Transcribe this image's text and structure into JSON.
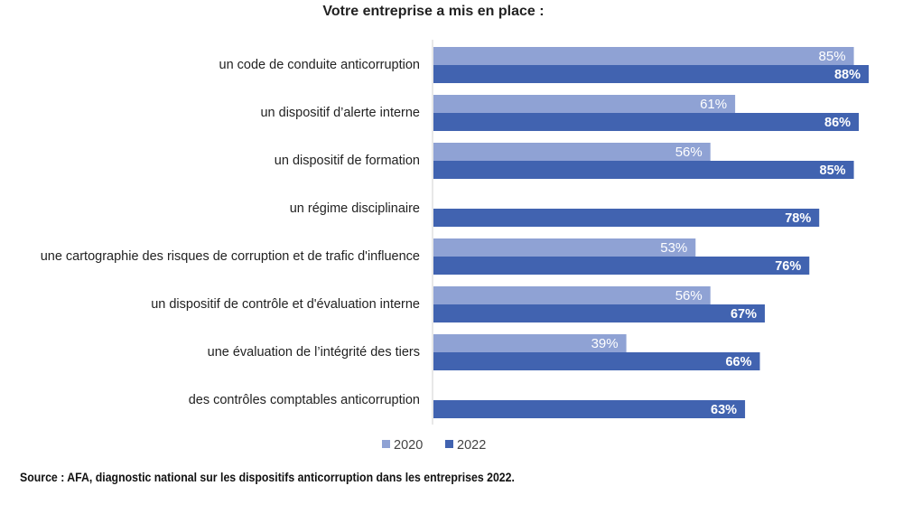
{
  "chart_data": {
    "type": "bar",
    "orientation": "horizontal",
    "title": "Votre entreprise a mis en place :",
    "categories": [
      "un code de conduite anticorruption",
      "un dispositif d’alerte interne",
      "un dispositif de formation",
      "un régime disciplinaire",
      "une cartographie des risques de corruption et de trafic d'influence",
      "un dispositif de contrôle et d'évaluation interne",
      "une évaluation de l’intégrité des tiers",
      "des contrôles comptables anticorruption"
    ],
    "series": [
      {
        "name": "2020",
        "color": "#8fa2d4",
        "values": [
          85,
          61,
          56,
          null,
          53,
          56,
          39,
          null
        ]
      },
      {
        "name": "2022",
        "color": "#4163b0",
        "values": [
          88,
          86,
          85,
          78,
          76,
          67,
          66,
          63
        ]
      }
    ],
    "value_format": "%",
    "xlim": [
      0,
      88
    ],
    "grid": false,
    "legend_position": "bottom"
  },
  "source": "Source : AFA, diagnostic national sur les dispositifs anticorruption dans les entreprises 2022."
}
